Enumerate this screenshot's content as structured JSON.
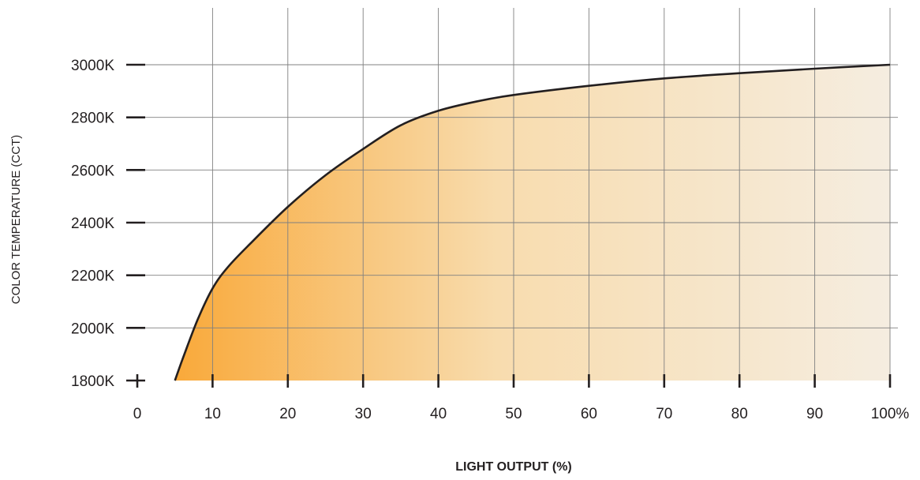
{
  "chart_data": {
    "type": "area",
    "xlabel": "LIGHT OUTPUT (%)",
    "ylabel": "COLOR  TEMPERATURE (CCT)",
    "x_tick_labels": [
      "0",
      "10",
      "20",
      "30",
      "40",
      "50",
      "60",
      "70",
      "80",
      "90",
      "100%"
    ],
    "y_tick_labels": [
      "1800K",
      "2000K",
      "2200K",
      "2400K",
      "2600K",
      "2800K",
      "3000K"
    ],
    "xlim": [
      0,
      100
    ],
    "ylim": [
      1800,
      3000
    ],
    "grid": true,
    "colors": {
      "fill_start": "#f9a93a",
      "fill_mid": "#f8dcae",
      "fill_end": "#f5ede0",
      "line": "#231f20",
      "grid": "#808080",
      "tick": "#231f20"
    },
    "series": [
      {
        "x": [
          5,
          6,
          8,
          10,
          12,
          15,
          20,
          25,
          30,
          35,
          40,
          45,
          50,
          60,
          70,
          80,
          90,
          100
        ],
        "y": [
          1800,
          1880,
          2030,
          2150,
          2230,
          2320,
          2460,
          2580,
          2680,
          2770,
          2825,
          2860,
          2885,
          2920,
          2948,
          2968,
          2985,
          3000
        ]
      }
    ]
  }
}
